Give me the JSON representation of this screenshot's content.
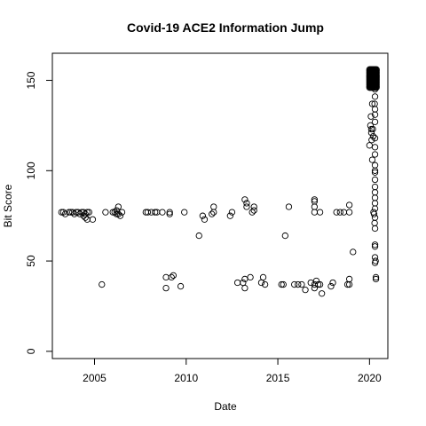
{
  "chart_data": {
    "type": "scatter",
    "title": "Covid-19 ACE2 Information Jump",
    "xlabel": "Date",
    "ylabel": "Bit Score",
    "xlim": [
      2002.7,
      2021.0
    ],
    "ylim": [
      -4,
      165
    ],
    "x_ticks": [
      2005,
      2010,
      2015,
      2020
    ],
    "x_tick_labels": [
      "2005",
      "2010",
      "2015",
      "2020"
    ],
    "y_ticks": [
      0,
      50,
      100,
      150
    ],
    "y_tick_labels": [
      "0",
      "50",
      "100",
      "150"
    ],
    "grid": false,
    "legend": "none",
    "marker": "open-circle",
    "points": [
      [
        2003.2,
        77
      ],
      [
        2003.3,
        77
      ],
      [
        2003.4,
        76
      ],
      [
        2003.6,
        77
      ],
      [
        2003.7,
        77
      ],
      [
        2003.8,
        77
      ],
      [
        2003.9,
        76
      ],
      [
        2004.0,
        77
      ],
      [
        2004.1,
        77
      ],
      [
        2004.2,
        76
      ],
      [
        2004.3,
        77
      ],
      [
        2004.4,
        75
      ],
      [
        2004.4,
        77
      ],
      [
        2004.5,
        76
      ],
      [
        2004.5,
        74
      ],
      [
        2004.6,
        73
      ],
      [
        2004.6,
        77
      ],
      [
        2004.7,
        77
      ],
      [
        2004.9,
        73
      ],
      [
        2005.4,
        37
      ],
      [
        2005.6,
        77
      ],
      [
        2006.0,
        77
      ],
      [
        2006.1,
        77
      ],
      [
        2006.2,
        76
      ],
      [
        2006.2,
        78
      ],
      [
        2006.3,
        80
      ],
      [
        2006.3,
        76
      ],
      [
        2006.4,
        75
      ],
      [
        2006.5,
        77
      ],
      [
        2007.8,
        77
      ],
      [
        2007.9,
        77
      ],
      [
        2008.1,
        77
      ],
      [
        2008.3,
        77
      ],
      [
        2008.4,
        77
      ],
      [
        2008.7,
        77
      ],
      [
        2008.9,
        35
      ],
      [
        2008.9,
        41
      ],
      [
        2009.1,
        77
      ],
      [
        2009.1,
        76
      ],
      [
        2009.2,
        41
      ],
      [
        2009.3,
        42
      ],
      [
        2009.7,
        36
      ],
      [
        2009.9,
        77
      ],
      [
        2010.7,
        64
      ],
      [
        2010.9,
        75
      ],
      [
        2011.0,
        73
      ],
      [
        2011.4,
        76
      ],
      [
        2011.5,
        80
      ],
      [
        2011.5,
        77
      ],
      [
        2012.4,
        75
      ],
      [
        2012.5,
        77
      ],
      [
        2012.8,
        38
      ],
      [
        2013.1,
        38
      ],
      [
        2013.2,
        35
      ],
      [
        2013.2,
        40
      ],
      [
        2013.2,
        84
      ],
      [
        2013.3,
        82
      ],
      [
        2013.3,
        80
      ],
      [
        2013.5,
        41
      ],
      [
        2013.6,
        77
      ],
      [
        2013.7,
        78
      ],
      [
        2013.7,
        80
      ],
      [
        2014.1,
        38
      ],
      [
        2014.2,
        41
      ],
      [
        2014.3,
        37
      ],
      [
        2015.2,
        37
      ],
      [
        2015.3,
        37
      ],
      [
        2015.4,
        64
      ],
      [
        2015.6,
        80
      ],
      [
        2015.9,
        37
      ],
      [
        2016.1,
        37
      ],
      [
        2016.3,
        37
      ],
      [
        2016.5,
        34
      ],
      [
        2016.8,
        38
      ],
      [
        2017.0,
        77
      ],
      [
        2017.0,
        83
      ],
      [
        2017.0,
        84
      ],
      [
        2017.0,
        80
      ],
      [
        2017.0,
        35
      ],
      [
        2017.0,
        37
      ],
      [
        2017.1,
        39
      ],
      [
        2017.2,
        37
      ],
      [
        2017.3,
        77
      ],
      [
        2017.3,
        37
      ],
      [
        2017.4,
        32
      ],
      [
        2017.9,
        36
      ],
      [
        2018.0,
        38
      ],
      [
        2018.2,
        77
      ],
      [
        2018.4,
        77
      ],
      [
        2018.6,
        77
      ],
      [
        2018.8,
        37
      ],
      [
        2018.9,
        37
      ],
      [
        2018.9,
        40
      ],
      [
        2018.9,
        81
      ],
      [
        2018.9,
        77
      ],
      [
        2019.1,
        55
      ],
      [
        2020.0,
        114
      ],
      [
        2020.05,
        125
      ],
      [
        2020.08,
        130
      ],
      [
        2020.1,
        123
      ],
      [
        2020.1,
        121
      ],
      [
        2020.12,
        117
      ],
      [
        2020.15,
        106
      ],
      [
        2020.15,
        137
      ],
      [
        2020.18,
        123
      ],
      [
        2020.2,
        119
      ],
      [
        2020.22,
        77
      ],
      [
        2020.25,
        76
      ],
      [
        2020.28,
        71
      ],
      [
        2020.3,
        68
      ],
      [
        2020.3,
        59
      ],
      [
        2020.3,
        52
      ],
      [
        2020.33,
        50
      ],
      [
        2020.35,
        41
      ],
      [
        2020.35,
        40
      ],
      [
        2020.3,
        58
      ],
      [
        2020.3,
        49
      ],
      [
        2020.05,
        147
      ],
      [
        2020.1,
        151
      ],
      [
        2020.15,
        152
      ],
      [
        2020.2,
        149
      ],
      [
        2020.28,
        137
      ],
      [
        2020.3,
        134
      ],
      [
        2020.3,
        131
      ],
      [
        2020.3,
        127
      ],
      [
        2020.3,
        118
      ],
      [
        2020.3,
        109
      ],
      [
        2020.3,
        103
      ],
      [
        2020.3,
        99
      ],
      [
        2020.3,
        95
      ],
      [
        2020.3,
        91
      ],
      [
        2020.3,
        88
      ],
      [
        2020.3,
        85
      ],
      [
        2020.3,
        82
      ],
      [
        2020.3,
        79
      ],
      [
        2020.3,
        74
      ],
      [
        2020.3,
        145
      ],
      [
        2020.3,
        141
      ],
      [
        2020.3,
        113
      ],
      [
        2020.3,
        100
      ]
    ],
    "dense_cluster": {
      "x_range": [
        2020.0,
        2020.38
      ],
      "y_range": [
        146,
        156
      ]
    }
  }
}
